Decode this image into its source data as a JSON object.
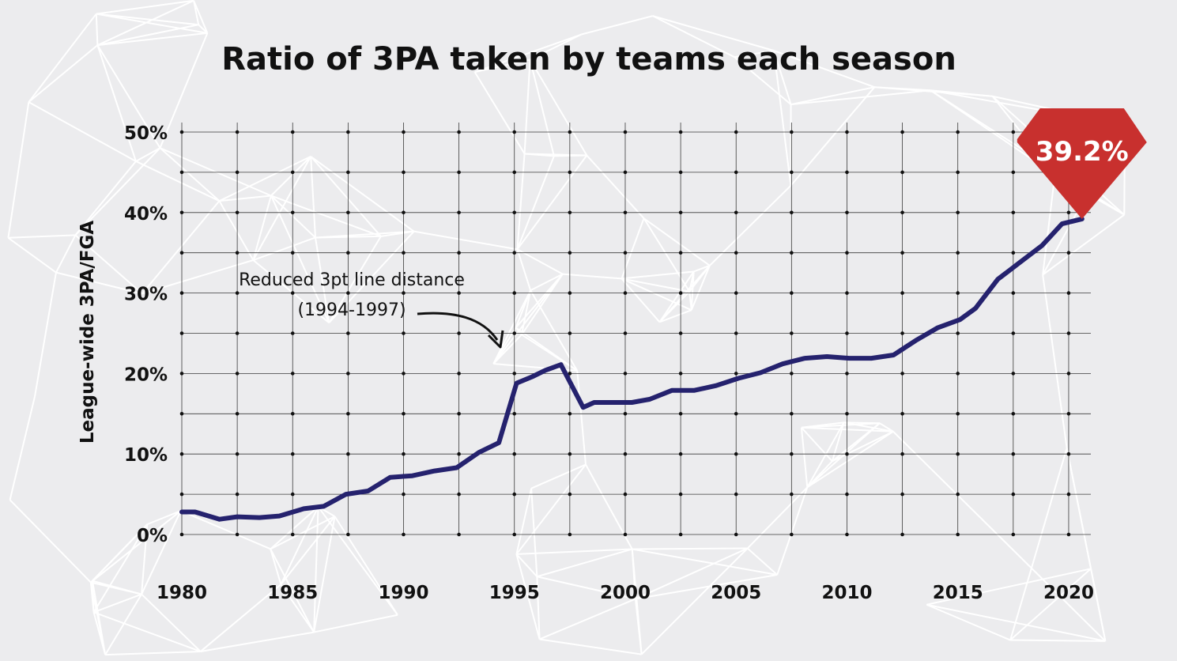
{
  "chart_data": {
    "type": "line",
    "title": "Ratio of 3PA taken by teams each season",
    "xlabel": "",
    "ylabel": "League-wide 3PA/FGA",
    "xlim": [
      1980,
      2021
    ],
    "ylim": [
      0,
      50
    ],
    "xticks": [
      "1980",
      "1985",
      "1990",
      "1995",
      "2000",
      "2005",
      "2010",
      "2015",
      "2020"
    ],
    "yticks": [
      "0%",
      "10%",
      "20%",
      "30%",
      "40%",
      "50%"
    ],
    "grid": true,
    "series": [
      {
        "color": "#25226e",
        "points": [
          [
            1980,
            2.8
          ],
          [
            1980.6,
            2.8
          ],
          [
            1981.7,
            1.9
          ],
          [
            1982.5,
            2.2
          ],
          [
            1983.5,
            2.1
          ],
          [
            1984.4,
            2.3
          ],
          [
            1985.5,
            3.2
          ],
          [
            1986.4,
            3.5
          ],
          [
            1987.4,
            5.0
          ],
          [
            1988.4,
            5.4
          ],
          [
            1989.4,
            7.1
          ],
          [
            1990.4,
            7.3
          ],
          [
            1991.4,
            7.9
          ],
          [
            1992.4,
            8.3
          ],
          [
            1993.4,
            10.2
          ],
          [
            1994.3,
            11.4
          ],
          [
            1995.1,
            18.8
          ],
          [
            1995.8,
            19.6
          ],
          [
            1996.4,
            20.4
          ],
          [
            1997.1,
            21.1
          ],
          [
            1998.1,
            15.8
          ],
          [
            1998.6,
            16.4
          ],
          [
            1999.4,
            16.4
          ],
          [
            2000.3,
            16.4
          ],
          [
            2001.1,
            16.8
          ],
          [
            2002.1,
            17.9
          ],
          [
            2003.1,
            17.9
          ],
          [
            2004.1,
            18.5
          ],
          [
            2005.1,
            19.4
          ],
          [
            2006.1,
            20.1
          ],
          [
            2007.1,
            21.2
          ],
          [
            2008.1,
            21.9
          ],
          [
            2009.1,
            22.1
          ],
          [
            2010.1,
            21.9
          ],
          [
            2011.1,
            21.9
          ],
          [
            2012.1,
            22.3
          ],
          [
            2013.1,
            24.1
          ],
          [
            2014.1,
            25.7
          ],
          [
            2015.1,
            26.7
          ],
          [
            2015.8,
            28.1
          ],
          [
            2016.8,
            31.7
          ],
          [
            2017.8,
            33.8
          ],
          [
            2018.8,
            35.9
          ],
          [
            2019.7,
            38.6
          ],
          [
            2020.6,
            39.2
          ]
        ]
      }
    ],
    "annotations": [
      {
        "lines": [
          "Reduced 3pt line distance",
          "(1994-1997)"
        ]
      }
    ],
    "callout": {
      "text": "39.2%",
      "x": 2020.6,
      "y": 39.2,
      "color": "#c8302e"
    }
  }
}
